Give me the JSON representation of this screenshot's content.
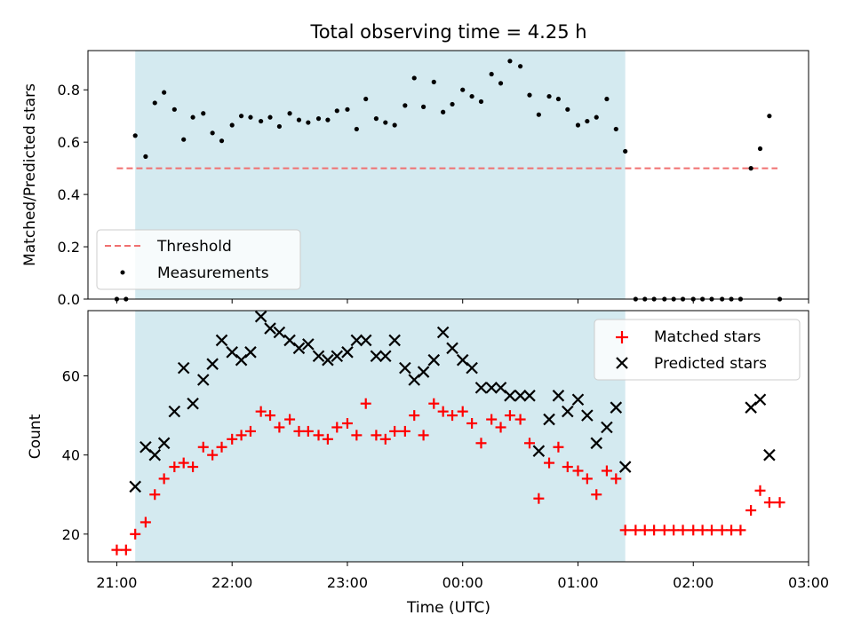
{
  "chart_data": [
    {
      "type": "scatter",
      "title": "Total observing time = 4.25 h",
      "xlabel": "",
      "ylabel": "Matched/Predicted stars",
      "xlim": [
        20.75,
        27.0
      ],
      "ylim": [
        0.0,
        0.95
      ],
      "yticks": [
        0.0,
        0.2,
        0.4,
        0.6,
        0.8
      ],
      "ytick_labels": [
        "0.0",
        "0.2",
        "0.4",
        "0.6",
        "0.8"
      ],
      "shaded_span": [
        21.16,
        25.41
      ],
      "shade_color": "#d4eaf0",
      "threshold": {
        "name": "Threshold",
        "y": 0.5,
        "x_range": [
          21.0,
          27.5
        ],
        "color": "#f07070",
        "style": "dashed"
      },
      "legend_location": "lower-left",
      "series": [
        {
          "name": "Measurements",
          "marker": "dot",
          "color": "#000000",
          "points": [
            [
              21.0,
              0.0
            ],
            [
              21.08,
              0.0
            ],
            [
              21.16,
              0.625
            ],
            [
              21.25,
              0.545
            ],
            [
              21.33,
              0.75
            ],
            [
              21.41,
              0.79
            ],
            [
              21.5,
              0.725
            ],
            [
              21.58,
              0.61
            ],
            [
              21.66,
              0.695
            ],
            [
              21.75,
              0.71
            ],
            [
              21.83,
              0.635
            ],
            [
              21.91,
              0.605
            ],
            [
              22.0,
              0.665
            ],
            [
              22.08,
              0.7
            ],
            [
              22.16,
              0.695
            ],
            [
              22.25,
              0.68
            ],
            [
              22.33,
              0.695
            ],
            [
              22.41,
              0.66
            ],
            [
              22.5,
              0.71
            ],
            [
              22.58,
              0.685
            ],
            [
              22.66,
              0.675
            ],
            [
              22.75,
              0.69
            ],
            [
              22.83,
              0.685
            ],
            [
              22.91,
              0.72
            ],
            [
              23.0,
              0.725
            ],
            [
              23.08,
              0.65
            ],
            [
              23.16,
              0.765
            ],
            [
              23.25,
              0.69
            ],
            [
              23.33,
              0.675
            ],
            [
              23.41,
              0.665
            ],
            [
              23.5,
              0.74
            ],
            [
              23.58,
              0.845
            ],
            [
              23.66,
              0.735
            ],
            [
              23.75,
              0.83
            ],
            [
              23.83,
              0.715
            ],
            [
              23.91,
              0.745
            ],
            [
              24.0,
              0.8
            ],
            [
              24.08,
              0.775
            ],
            [
              24.16,
              0.755
            ],
            [
              24.25,
              0.86
            ],
            [
              24.33,
              0.825
            ],
            [
              24.41,
              0.91
            ],
            [
              24.5,
              0.89
            ],
            [
              24.58,
              0.78
            ],
            [
              24.66,
              0.705
            ],
            [
              24.75,
              0.775
            ],
            [
              24.83,
              0.765
            ],
            [
              24.91,
              0.725
            ],
            [
              25.0,
              0.665
            ],
            [
              25.08,
              0.68
            ],
            [
              25.16,
              0.695
            ],
            [
              25.25,
              0.765
            ],
            [
              25.33,
              0.65
            ],
            [
              25.41,
              0.565
            ],
            [
              25.5,
              0.0
            ],
            [
              25.58,
              0.0
            ],
            [
              25.66,
              0.0
            ],
            [
              25.75,
              0.0
            ],
            [
              25.83,
              0.0
            ],
            [
              25.91,
              0.0
            ],
            [
              26.0,
              0.0
            ],
            [
              26.08,
              0.0
            ],
            [
              26.16,
              0.0
            ],
            [
              26.25,
              0.0
            ],
            [
              26.33,
              0.0
            ],
            [
              26.41,
              0.0
            ],
            [
              26.5,
              0.5
            ],
            [
              26.58,
              0.575
            ],
            [
              26.66,
              0.7
            ],
            [
              26.75,
              0.0
            ]
          ]
        }
      ]
    },
    {
      "type": "scatter",
      "title": "",
      "xlabel": "Time (UTC)",
      "ylabel": "Count",
      "xlim": [
        20.75,
        27.0
      ],
      "ylim": [
        13,
        76.5
      ],
      "yticks": [
        20,
        40,
        60
      ],
      "ytick_labels": [
        "20",
        "40",
        "60"
      ],
      "xticks": [
        21,
        22,
        23,
        24,
        25,
        26,
        27
      ],
      "xtick_labels": [
        "21:00",
        "22:00",
        "23:00",
        "00:00",
        "01:00",
        "02:00",
        "03:00"
      ],
      "shaded_span": [
        21.16,
        25.41
      ],
      "shade_color": "#d4eaf0",
      "legend_location": "upper-right",
      "series": [
        {
          "name": "Matched stars",
          "marker": "plus",
          "color": "#ff0000",
          "points": [
            [
              21.0,
              16
            ],
            [
              21.08,
              16
            ],
            [
              21.16,
              20
            ],
            [
              21.25,
              23
            ],
            [
              21.33,
              30
            ],
            [
              21.41,
              34
            ],
            [
              21.5,
              37
            ],
            [
              21.58,
              38
            ],
            [
              21.66,
              37
            ],
            [
              21.75,
              42
            ],
            [
              21.83,
              40
            ],
            [
              21.91,
              42
            ],
            [
              22.0,
              44
            ],
            [
              22.08,
              45
            ],
            [
              22.16,
              46
            ],
            [
              22.25,
              51
            ],
            [
              22.33,
              50
            ],
            [
              22.41,
              47
            ],
            [
              22.5,
              49
            ],
            [
              22.58,
              46
            ],
            [
              22.66,
              46
            ],
            [
              22.75,
              45
            ],
            [
              22.83,
              44
            ],
            [
              22.91,
              47
            ],
            [
              23.0,
              48
            ],
            [
              23.08,
              45
            ],
            [
              23.16,
              53
            ],
            [
              23.25,
              45
            ],
            [
              23.33,
              44
            ],
            [
              23.41,
              46
            ],
            [
              23.5,
              46
            ],
            [
              23.58,
              50
            ],
            [
              23.66,
              45
            ],
            [
              23.75,
              53
            ],
            [
              23.83,
              51
            ],
            [
              23.91,
              50
            ],
            [
              24.0,
              51
            ],
            [
              24.08,
              48
            ],
            [
              24.16,
              43
            ],
            [
              24.25,
              49
            ],
            [
              24.33,
              47
            ],
            [
              24.41,
              50
            ],
            [
              24.5,
              49
            ],
            [
              24.58,
              43
            ],
            [
              24.66,
              29
            ],
            [
              24.75,
              38
            ],
            [
              24.83,
              42
            ],
            [
              24.91,
              37
            ],
            [
              25.0,
              36
            ],
            [
              25.08,
              34
            ],
            [
              25.16,
              30
            ],
            [
              25.25,
              36
            ],
            [
              25.33,
              34
            ],
            [
              25.41,
              21
            ],
            [
              25.5,
              21
            ],
            [
              25.58,
              21
            ],
            [
              25.66,
              21
            ],
            [
              25.75,
              21
            ],
            [
              25.83,
              21
            ],
            [
              25.91,
              21
            ],
            [
              26.0,
              21
            ],
            [
              26.08,
              21
            ],
            [
              26.16,
              21
            ],
            [
              26.25,
              21
            ],
            [
              26.33,
              21
            ],
            [
              26.41,
              21
            ],
            [
              26.5,
              26
            ],
            [
              26.58,
              31
            ],
            [
              26.66,
              28
            ],
            [
              26.75,
              28
            ]
          ]
        },
        {
          "name": "Predicted stars",
          "marker": "x",
          "color": "#000000",
          "points": [
            [
              21.16,
              32
            ],
            [
              21.25,
              42
            ],
            [
              21.33,
              40
            ],
            [
              21.41,
              43
            ],
            [
              21.5,
              51
            ],
            [
              21.58,
              62
            ],
            [
              21.66,
              53
            ],
            [
              21.75,
              59
            ],
            [
              21.83,
              63
            ],
            [
              21.91,
              69
            ],
            [
              22.0,
              66
            ],
            [
              22.08,
              64
            ],
            [
              22.16,
              66
            ],
            [
              22.25,
              75
            ],
            [
              22.33,
              72
            ],
            [
              22.41,
              71
            ],
            [
              22.5,
              69
            ],
            [
              22.58,
              67
            ],
            [
              22.66,
              68
            ],
            [
              22.75,
              65
            ],
            [
              22.83,
              64
            ],
            [
              22.91,
              65
            ],
            [
              23.0,
              66
            ],
            [
              23.08,
              69
            ],
            [
              23.16,
              69
            ],
            [
              23.25,
              65
            ],
            [
              23.33,
              65
            ],
            [
              23.41,
              69
            ],
            [
              23.5,
              62
            ],
            [
              23.58,
              59
            ],
            [
              23.66,
              61
            ],
            [
              23.75,
              64
            ],
            [
              23.83,
              71
            ],
            [
              23.91,
              67
            ],
            [
              24.0,
              64
            ],
            [
              24.08,
              62
            ],
            [
              24.16,
              57
            ],
            [
              24.25,
              57
            ],
            [
              24.33,
              57
            ],
            [
              24.41,
              55
            ],
            [
              24.5,
              55
            ],
            [
              24.58,
              55
            ],
            [
              24.66,
              41
            ],
            [
              24.75,
              49
            ],
            [
              24.83,
              55
            ],
            [
              24.91,
              51
            ],
            [
              25.0,
              54
            ],
            [
              25.08,
              50
            ],
            [
              25.16,
              43
            ],
            [
              25.25,
              47
            ],
            [
              25.33,
              52
            ],
            [
              25.41,
              37
            ],
            [
              26.5,
              52
            ],
            [
              26.58,
              54
            ],
            [
              26.66,
              40
            ]
          ]
        }
      ]
    }
  ]
}
